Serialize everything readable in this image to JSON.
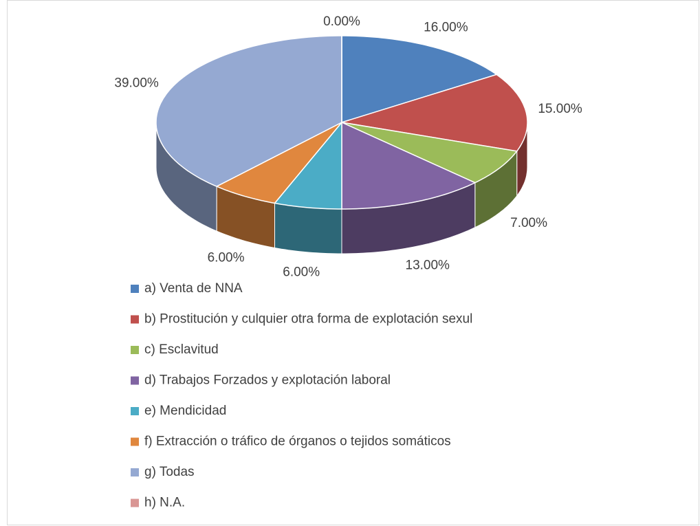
{
  "chart_data": {
    "type": "pie3d",
    "categories": [
      "a) Venta de NNA",
      "b) Prostitución y culquier otra forma de explotación sexul",
      "c) Esclavitud",
      "d) Trabajos Forzados y explotación laboral",
      "e) Mendicidad",
      "f) Extracción o tráfico de órganos o tejidos somáticos",
      "g) Todas",
      "h) N.A."
    ],
    "values": [
      16,
      15,
      7,
      13,
      6,
      6,
      39,
      0
    ],
    "value_labels": [
      "16.00%",
      "15.00%",
      "7.00%",
      "13.00%",
      "6.00%",
      "6.00%",
      "39.00%",
      "0.00%"
    ],
    "colors": [
      "#4f81bd",
      "#c0504d",
      "#9bbb59",
      "#8064a2",
      "#4bacc6",
      "#e0873e",
      "#95a9d2",
      "#d99694"
    ],
    "legend": "bottom"
  }
}
